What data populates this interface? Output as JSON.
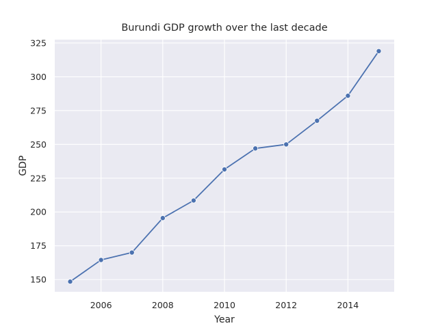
{
  "chart_data": {
    "type": "line",
    "title": "Burundi GDP growth over the last decade",
    "xlabel": "Year",
    "ylabel": "GDP",
    "x": [
      2005,
      2006,
      2007,
      2008,
      2009,
      2010,
      2011,
      2012,
      2013,
      2014,
      2015
    ],
    "series": [
      {
        "values": [
          148.5,
          164.5,
          170,
          195.5,
          208.5,
          231.5,
          247,
          250,
          267.5,
          286,
          319
        ]
      }
    ],
    "xticks": [
      2006,
      2008,
      2010,
      2012,
      2014
    ],
    "yticks": [
      150,
      175,
      200,
      225,
      250,
      275,
      300,
      325
    ],
    "xlim": [
      2004.5,
      2015.5
    ],
    "ylim": [
      140.96,
      327.5
    ],
    "grid": true,
    "line_color": "#4c72b0",
    "background_color": "#eaeaf2",
    "grid_color": "#ffffff"
  }
}
